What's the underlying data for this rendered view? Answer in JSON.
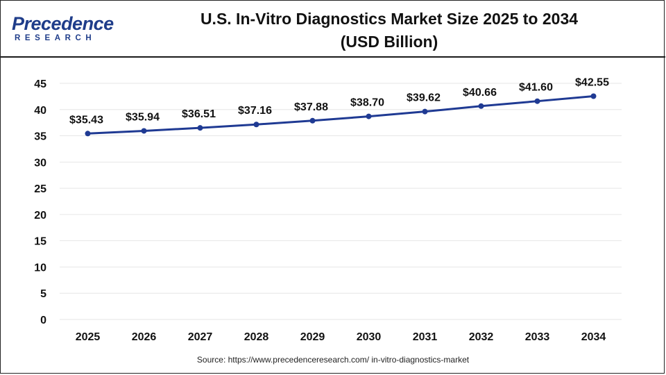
{
  "header": {
    "logo_word": "Precedence",
    "logo_sub": "RESEARCH",
    "title_line1": "U.S. In-Vitro Diagnostics Market Size 2025 to 2034",
    "title_line2": "(USD Billion)"
  },
  "source": "Source: https://www.precedenceresearch.com/ in-vitro-diagnostics-market",
  "colors": {
    "line": "#1f3a93",
    "brand": "#1f3d8a",
    "grid": "#e6e6e6",
    "axis_text": "#111111"
  },
  "chart_data": {
    "type": "line",
    "title": "U.S. In-Vitro Diagnostics Market Size 2025 to 2034 (USD Billion)",
    "categories": [
      "2025",
      "2026",
      "2027",
      "2028",
      "2029",
      "2030",
      "2031",
      "2032",
      "2033",
      "2034"
    ],
    "series": [
      {
        "values": [
          35.43,
          35.94,
          36.51,
          37.16,
          37.88,
          38.7,
          39.62,
          40.66,
          41.6,
          42.55
        ],
        "data_labels": [
          "$35.43",
          "$35.94",
          "$36.51",
          "$37.16",
          "$37.88",
          "$38.70",
          "$39.62",
          "$40.66",
          "$41.60",
          "$42.55"
        ]
      }
    ],
    "ylim": [
      0,
      45
    ],
    "yticks": [
      0,
      5,
      10,
      15,
      20,
      25,
      30,
      35,
      40,
      45
    ],
    "grid": true,
    "legend": "none"
  }
}
